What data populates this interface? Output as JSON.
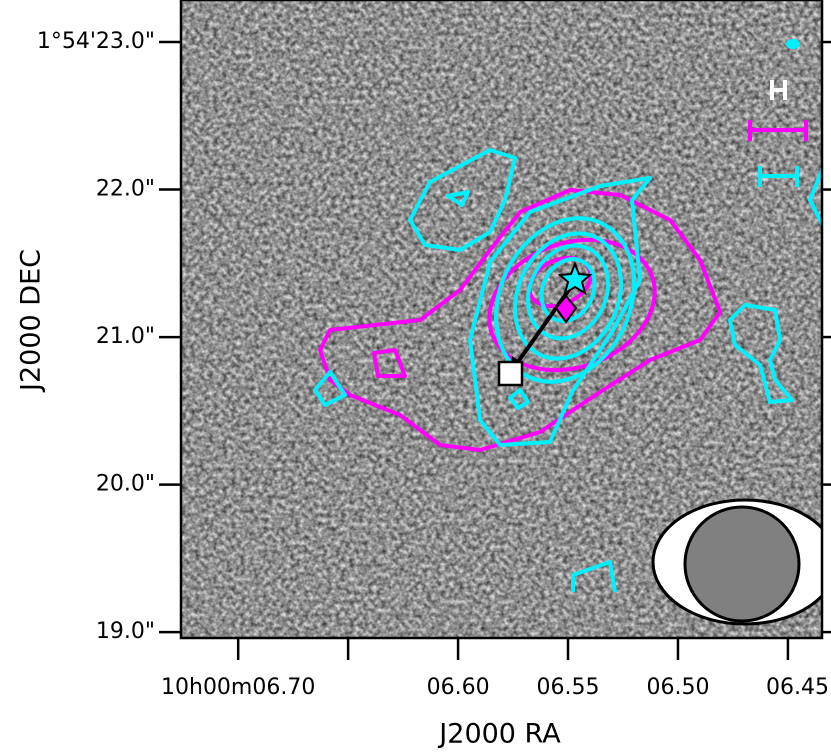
{
  "chart_data": {
    "type": "image",
    "xlabel": "J2000 RA",
    "ylabel": "J2000 DEC",
    "xlim": [
      6.726,
      6.4345
    ],
    "ylim": [
      18.96,
      23.285
    ],
    "xticks": [
      {
        "value": 6.7,
        "label": "10h00m06.70"
      },
      {
        "value": 6.65,
        "label": null
      },
      {
        "value": 6.6,
        "label": "06.60"
      },
      {
        "value": 6.55,
        "label": "06.55"
      },
      {
        "value": 6.5,
        "label": "06.50"
      },
      {
        "value": 6.45,
        "label": "06.45"
      }
    ],
    "yticks": [
      {
        "value": 23.0,
        "label": "1°54'23.0\""
      },
      {
        "value": 22.0,
        "label": "22.0\""
      },
      {
        "value": 21.0,
        "label": "21.0\""
      },
      {
        "value": 20.0,
        "label": "20.0\""
      },
      {
        "value": 19.0,
        "label": "19.0\""
      }
    ]
  }
}
